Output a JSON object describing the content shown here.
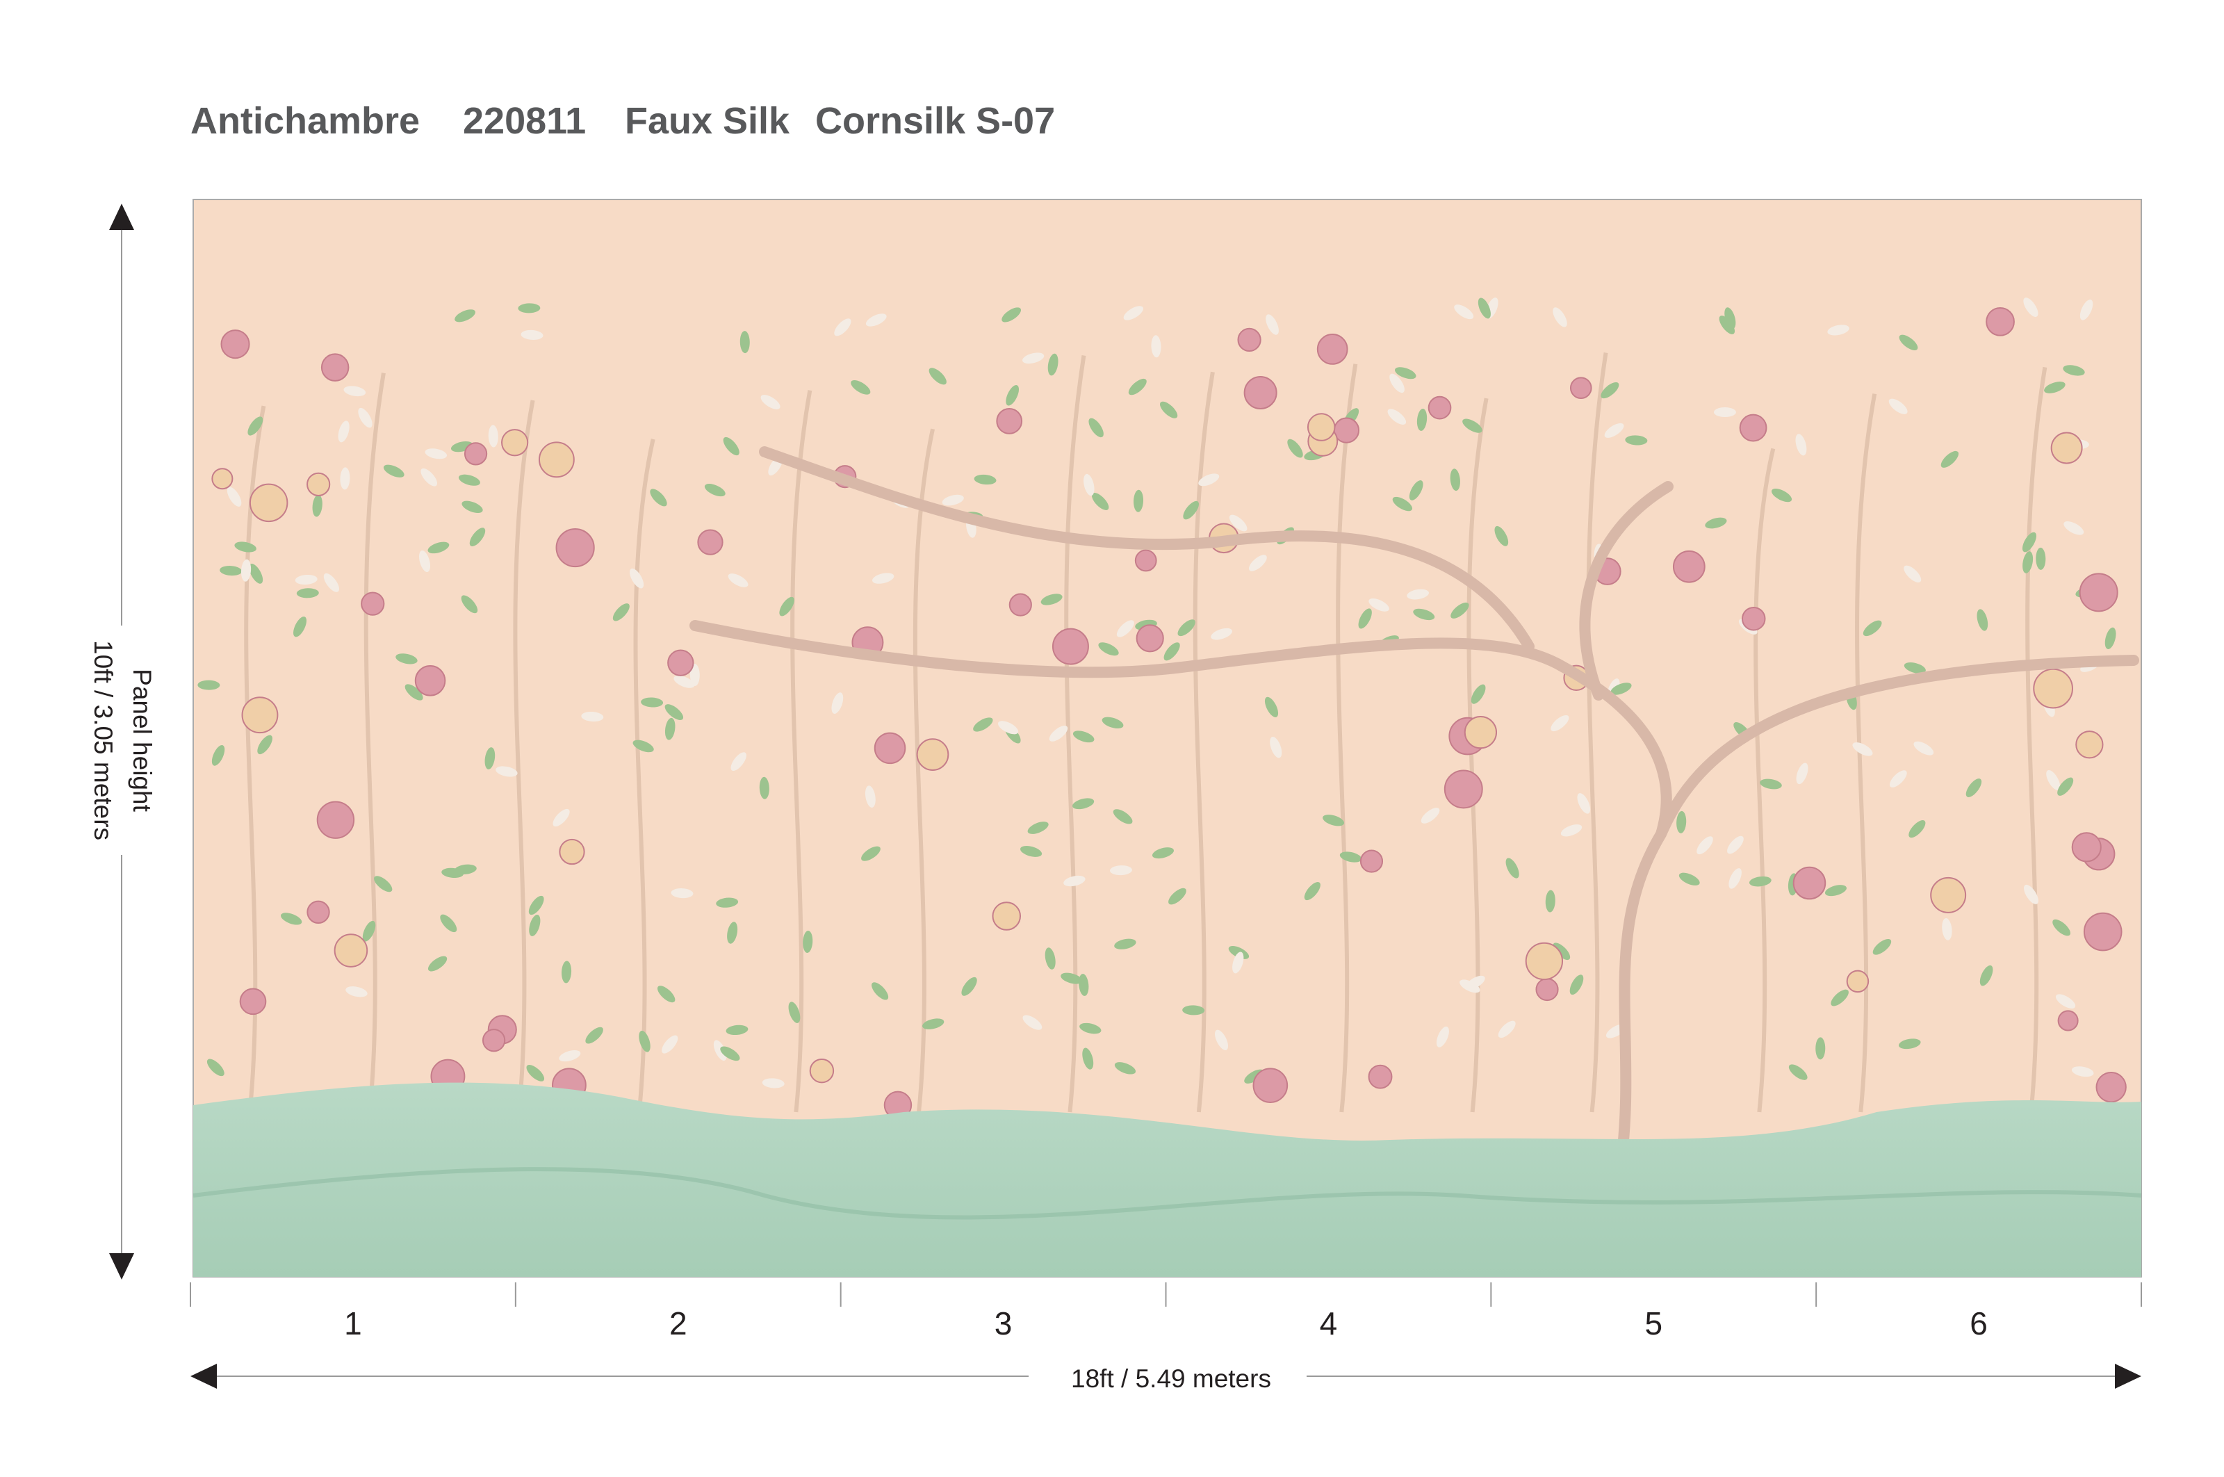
{
  "header": {
    "product": "Antichambre",
    "code": "220811",
    "material": "Faux Silk",
    "colorway": "Cornsilk S-07"
  },
  "panels": [
    "1",
    "2",
    "3",
    "4",
    "5",
    "6"
  ],
  "width_label": "18ft / 5.49 meters",
  "height_label": {
    "line1": "Panel height",
    "line2": "10ft / 3.05 meters"
  }
}
